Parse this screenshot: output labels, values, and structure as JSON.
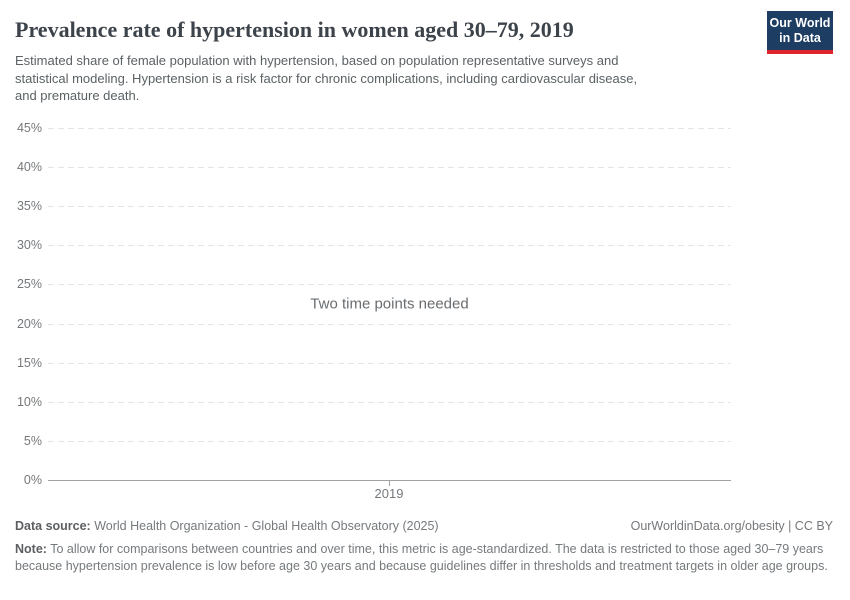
{
  "header": {
    "title": "Prevalence rate of hypertension in women aged 30–79, 2019",
    "subtitle_lines": [
      "Estimated share of female population with hypertension, based on population representative surveys and",
      "statistical modeling. Hypertension is a risk factor for chronic complications, including cardiovascular disease,",
      "and premature death."
    ],
    "logo": {
      "line1": "Our World",
      "line2": "in Data"
    }
  },
  "chart_data": {
    "type": "line",
    "title": "Prevalence rate of hypertension in women aged 30–79, 2019",
    "series": [],
    "values": [],
    "empty_message": "Two time points needed",
    "x_tick_labels": [
      "2019"
    ],
    "y_tick_labels": [
      "45%",
      "40%",
      "35%",
      "30%",
      "25%",
      "20%",
      "15%",
      "10%",
      "5%",
      "0%"
    ],
    "ylim": [
      0,
      45
    ],
    "xlabel": "",
    "ylabel": "",
    "grid": "horizontal-dashed",
    "legend": "none"
  },
  "footer": {
    "source_label": "Data source:",
    "source_value": "World Health Organization - Global Health Observatory (2025)",
    "attribution": "OurWorldinData.org/obesity | CC BY",
    "note_label": "Note:",
    "note_text": "To allow for comparisons between countries and over time, this metric is age-standardized. The data is restricted to those aged 30–79 years because hypertension prevalence is low before age 30 years and because guidelines differ in thresholds and treatment targets in older age groups."
  },
  "colors": {
    "logo_bg": "#1d3d63",
    "logo_stripe": "#e0242e",
    "title_text": "#3d434a",
    "subtitle_text": "#5b6164",
    "muted_text": "#75787b",
    "axis_line": "#a0a2a4",
    "gridline": "#e5e5e5"
  }
}
